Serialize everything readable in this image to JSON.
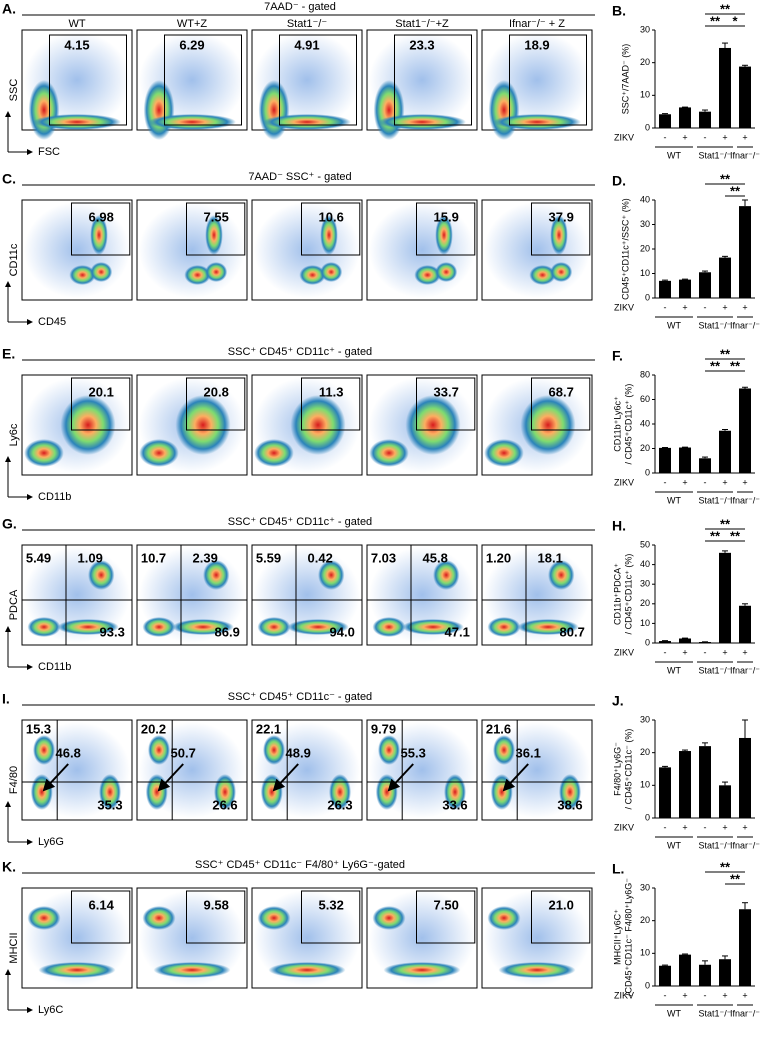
{
  "columns": [
    "WT",
    "WT+Z",
    "Stat1⁻/⁻",
    "Stat1⁻/⁻+Z",
    "Ifnar⁻/⁻ + Z"
  ],
  "panels": [
    {
      "label": "A.",
      "gate": "7AAD⁻ - gated",
      "y_axis": "SSC",
      "x_axis": "FSC",
      "plots": [
        [
          "4.15"
        ],
        [
          "6.29"
        ],
        [
          "4.91"
        ],
        [
          "23.3"
        ],
        [
          "18.9"
        ]
      ]
    },
    {
      "label": "C.",
      "gate": "7AAD⁻ SSC⁺ - gated",
      "y_axis": "CD11c",
      "x_axis": "CD45",
      "plots": [
        [
          "6.98"
        ],
        [
          "7.55"
        ],
        [
          "10.6"
        ],
        [
          "15.9"
        ],
        [
          "37.9"
        ]
      ]
    },
    {
      "label": "E.",
      "gate": "SSC⁺ CD45⁺ CD11c⁺ - gated",
      "y_axis": "Ly6c",
      "x_axis": "CD11b",
      "plots": [
        [
          "20.1"
        ],
        [
          "20.8"
        ],
        [
          "11.3"
        ],
        [
          "33.7"
        ],
        [
          "68.7"
        ]
      ]
    },
    {
      "label": "G.",
      "gate": "SSC⁺ CD45⁺ CD11c⁺ - gated",
      "y_axis": "PDCA",
      "x_axis": "CD11b",
      "plots": [
        [
          "5.49",
          "1.09",
          "93.3"
        ],
        [
          "10.7",
          "2.39",
          "86.9"
        ],
        [
          "5.59",
          "0.42",
          "94.0"
        ],
        [
          "7.03",
          "45.8",
          "47.1"
        ],
        [
          "1.20",
          "18.1",
          "80.7"
        ]
      ]
    },
    {
      "label": "I.",
      "gate": "SSC⁺ CD45⁺ CD11c⁻ - gated",
      "y_axis": "F4/80",
      "x_axis": "Ly6G",
      "plots": [
        [
          "15.3",
          "46.8",
          "35.3"
        ],
        [
          "20.2",
          "50.7",
          "26.6"
        ],
        [
          "22.1",
          "48.9",
          "26.3"
        ],
        [
          "9.79",
          "55.3",
          "33.6"
        ],
        [
          "21.6",
          "36.1",
          "38.6"
        ]
      ]
    },
    {
      "label": "K.",
      "gate": "SSC⁺ CD45⁺ CD11c⁻ F4/80⁺ Ly6G⁻-gated",
      "y_axis": "MHCII",
      "x_axis": "Ly6C",
      "plots": [
        [
          "6.14"
        ],
        [
          "9.58"
        ],
        [
          "5.32"
        ],
        [
          "7.50"
        ],
        [
          "21.0"
        ]
      ]
    }
  ],
  "zikv_label": "ZIKV",
  "zikv": [
    "-",
    "+",
    "-",
    "+",
    "+"
  ],
  "groups": [
    "WT",
    "Stat1⁻/⁻",
    "Ifnar⁻/⁻"
  ],
  "chart_data": [
    {
      "type": "bar",
      "label": "B.",
      "y_label": [
        "SSC⁺/7AAD⁻ (%)"
      ],
      "color": "#000000",
      "values": [
        4.2,
        6.3,
        5.0,
        24.5,
        18.8
      ],
      "errors": [
        0.2,
        0.1,
        0.5,
        1.5,
        0.4
      ],
      "ylim": [
        0,
        30
      ],
      "yticks": [
        0,
        10,
        20,
        30
      ],
      "significance": [
        "**",
        "**",
        "*"
      ]
    },
    {
      "type": "bar",
      "label": "D.",
      "y_label": [
        "CD45⁺CD11c⁺/SSC⁺ (%)"
      ],
      "color": "#000000",
      "values": [
        7.0,
        7.5,
        10.5,
        16.5,
        37.5
      ],
      "errors": [
        0.3,
        0.2,
        0.5,
        0.5,
        2.5
      ],
      "ylim": [
        0,
        40
      ],
      "yticks": [
        0,
        10,
        20,
        30,
        40
      ],
      "significance": [
        "**",
        "**"
      ]
    },
    {
      "type": "bar",
      "label": "F.",
      "y_label": [
        "CD11b⁺Ly6c⁺",
        "/ CD45⁺CD11c⁺ (%)"
      ],
      "color": "#000000",
      "values": [
        20.5,
        20.8,
        12.0,
        34.5,
        69.0
      ],
      "errors": [
        0.3,
        0.3,
        1.0,
        1.0,
        1.0
      ],
      "ylim": [
        0,
        80
      ],
      "yticks": [
        0,
        20,
        40,
        60,
        80
      ],
      "significance": [
        "**",
        "**",
        "**"
      ]
    },
    {
      "type": "bar",
      "label": "H.",
      "y_label": [
        "CD11b⁺PDCA⁺",
        "/ CD45⁺CD11c⁺ (%)"
      ],
      "color": "#000000",
      "values": [
        1.0,
        2.3,
        0.5,
        46.0,
        19.0
      ],
      "errors": [
        0.2,
        0.2,
        0.1,
        1.0,
        1.0
      ],
      "ylim": [
        0,
        50
      ],
      "yticks": [
        0,
        10,
        20,
        30,
        40,
        50
      ],
      "significance": [
        "**",
        "**",
        "**"
      ]
    },
    {
      "type": "bar",
      "label": "J.",
      "y_label": [
        "F4/80⁺Ly6G⁻",
        "/ CD45⁺CD11c⁻ (%)"
      ],
      "color": "#000000",
      "values": [
        15.5,
        20.5,
        22.0,
        10.0,
        24.5
      ],
      "errors": [
        0.3,
        0.3,
        1.0,
        1.0,
        5.5
      ],
      "ylim": [
        0,
        30
      ],
      "yticks": [
        0,
        10,
        20,
        30
      ],
      "significance": []
    },
    {
      "type": "bar",
      "label": "L.",
      "y_label": [
        "MHCII⁺Ly6C⁺",
        "/CD45⁺CD11c⁻ F4/80⁺Ly6G⁻"
      ],
      "color": "#000000",
      "values": [
        6.2,
        9.6,
        6.5,
        8.2,
        23.5
      ],
      "errors": [
        0.2,
        0.2,
        1.2,
        1.0,
        2.0
      ],
      "ylim": [
        0,
        30
      ],
      "yticks": [
        0,
        10,
        20,
        30
      ],
      "significance": [
        "**",
        "**"
      ]
    }
  ]
}
